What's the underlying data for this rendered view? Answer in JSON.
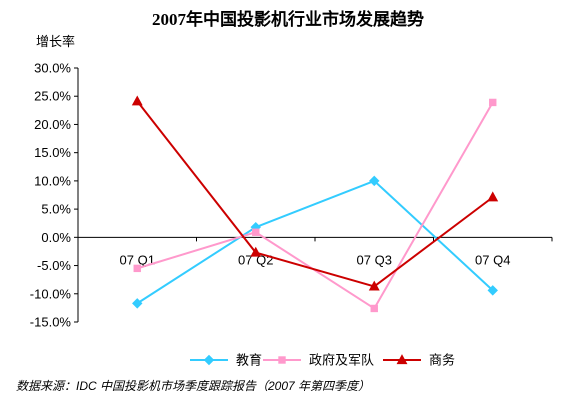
{
  "chart_data": {
    "type": "line",
    "title": "2007年中国投影机行业市场发展趋势",
    "xlabel": "",
    "ylabel": "增长率",
    "categories": [
      "07 Q1",
      "07 Q2",
      "07 Q3",
      "07 Q4"
    ],
    "ylim": [
      -15,
      30
    ],
    "yticks": [
      30,
      25,
      20,
      15,
      10,
      5,
      0,
      -5,
      -10,
      -15
    ],
    "ytick_labels": [
      "30.0%",
      "25.0%",
      "20.0%",
      "15.0%",
      "10.0%",
      "5.0%",
      "0.0%",
      "-5.0%",
      "-10.0%",
      "-15.0%"
    ],
    "grid": false,
    "legend": "bottom",
    "series": [
      {
        "name": "教育",
        "color": "#33CCFF",
        "marker": "diamond",
        "values": [
          -11.7,
          1.8,
          10.0,
          -9.4
        ]
      },
      {
        "name": "政府及军队",
        "color": "#FF99CC",
        "marker": "square",
        "values": [
          -5.5,
          0.9,
          -12.6,
          23.9
        ]
      },
      {
        "name": "商务",
        "color": "#CC0000",
        "marker": "triangle",
        "values": [
          24.1,
          -2.7,
          -8.7,
          7.1
        ]
      }
    ]
  },
  "source": "数据来源：IDC 中国投影机市场季度跟踪报告（2007 年第四季度）"
}
